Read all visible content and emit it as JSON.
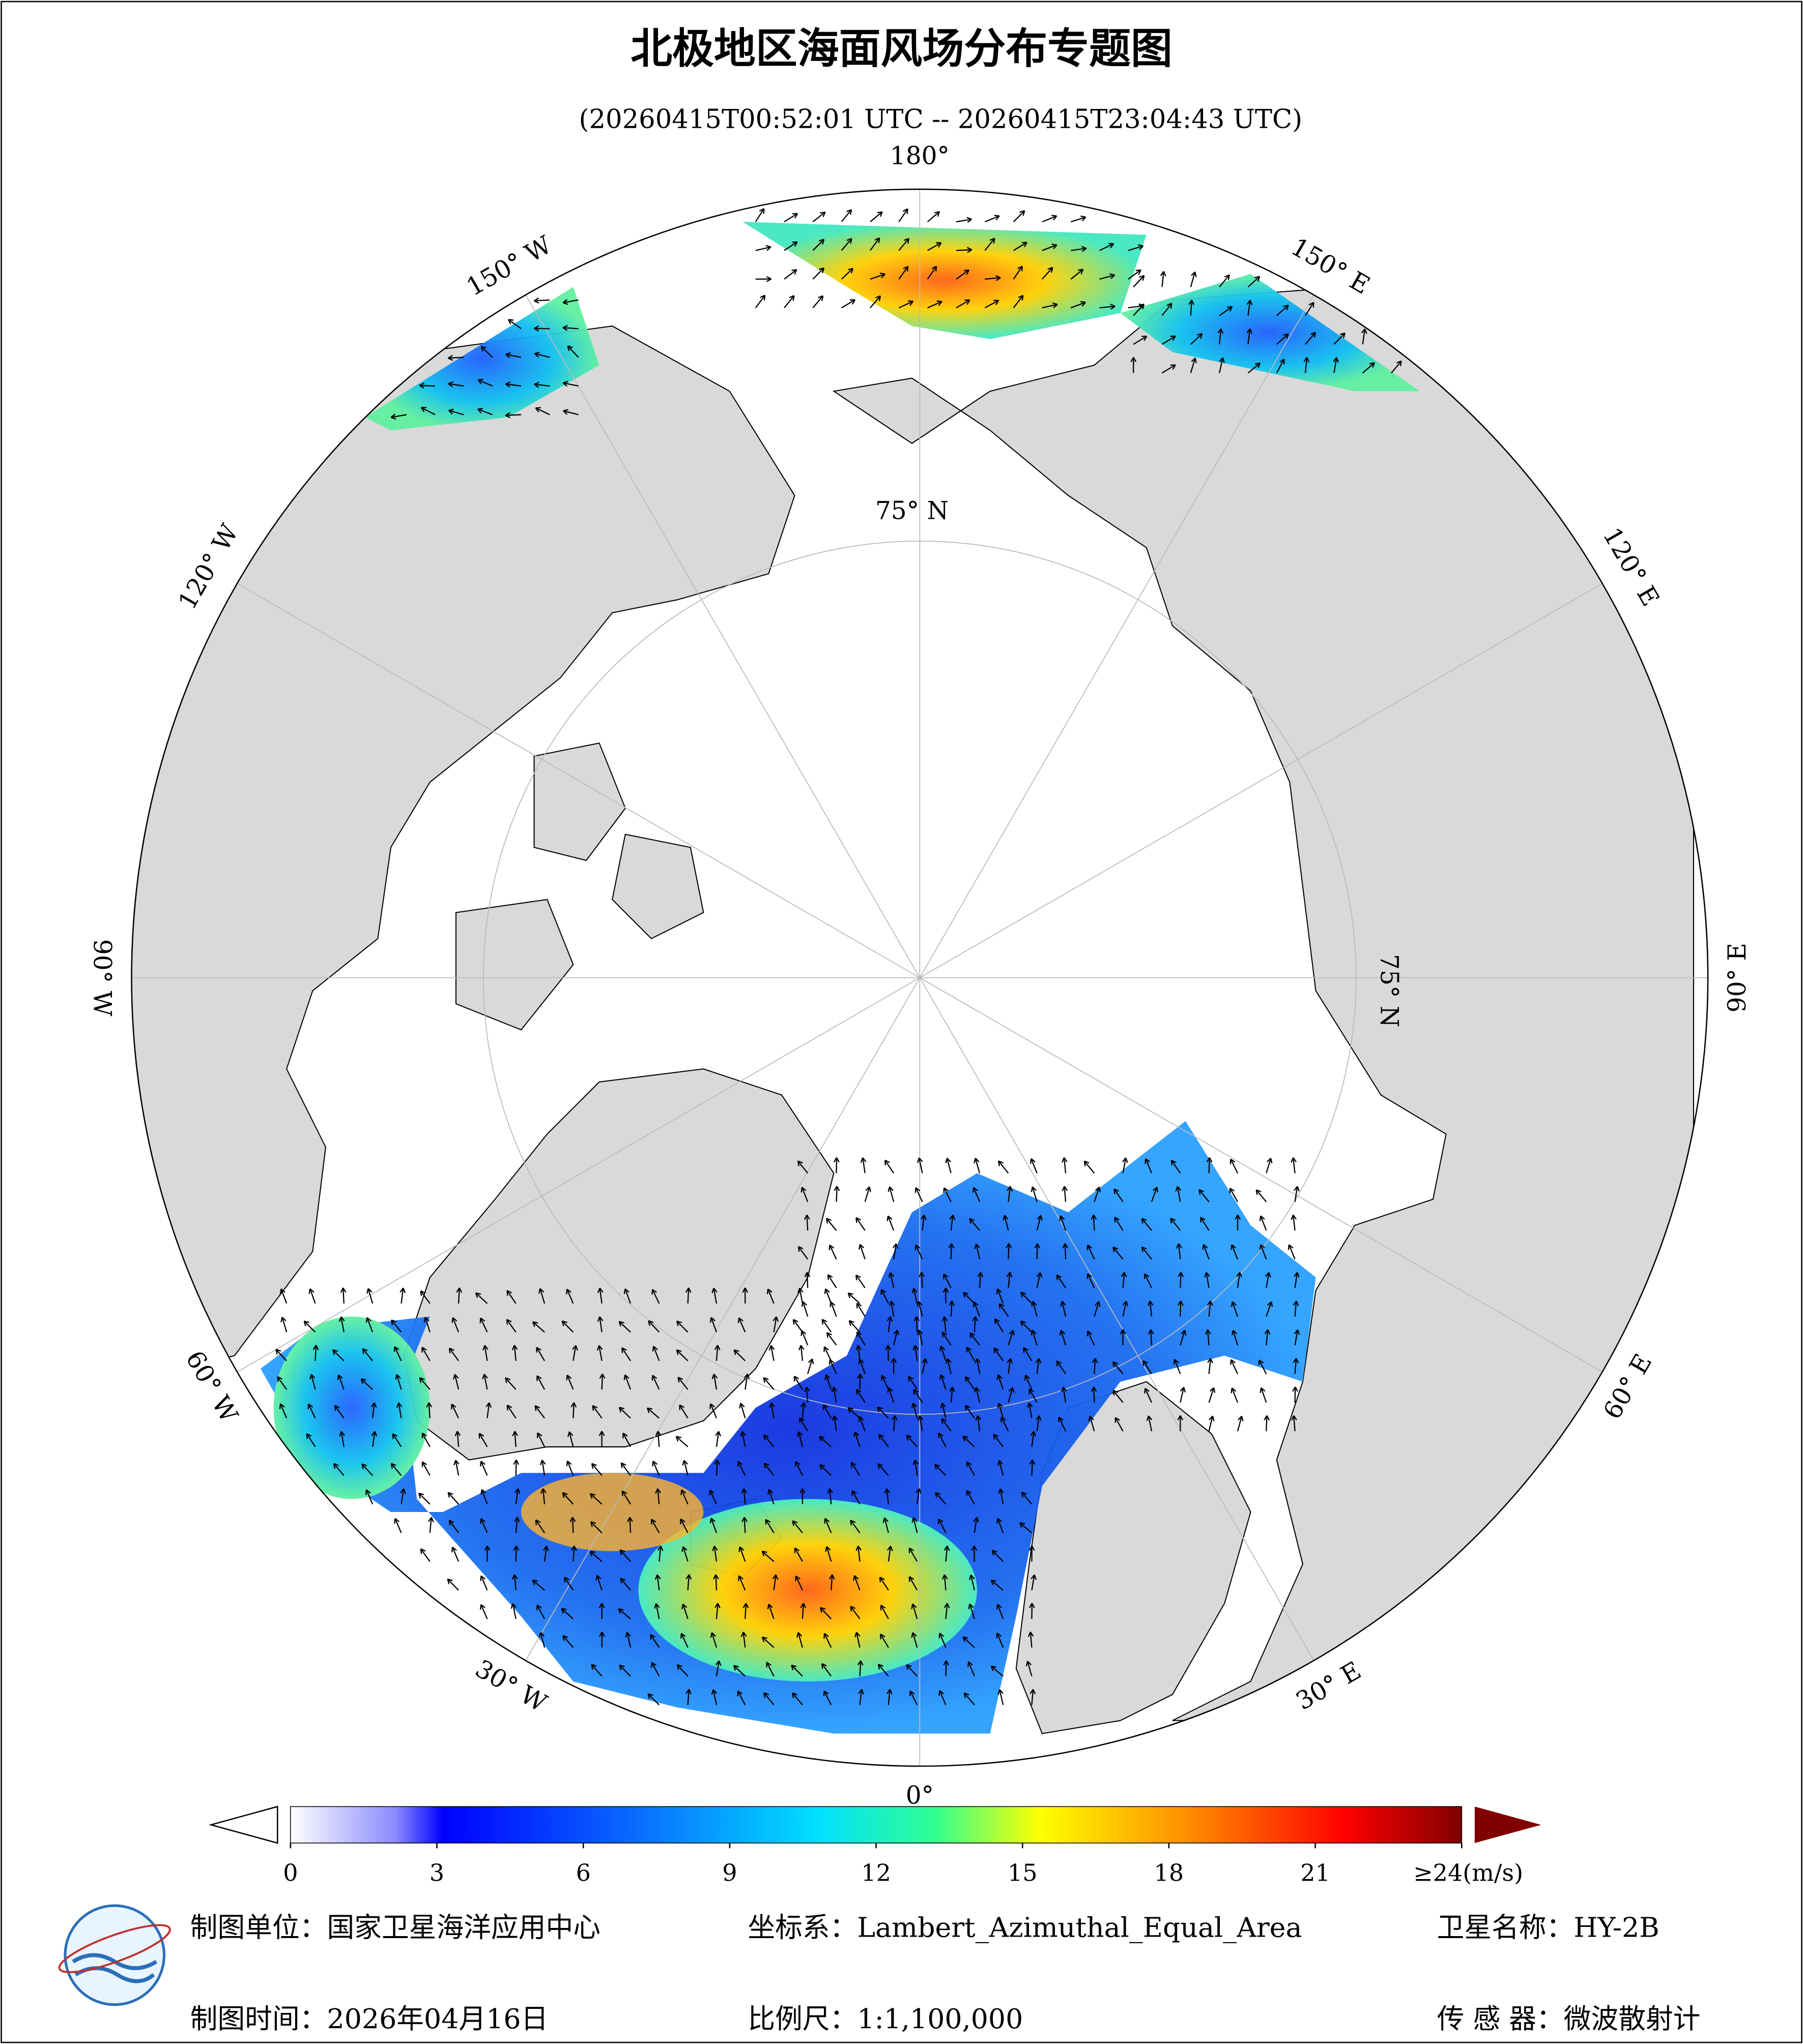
{
  "header": {
    "title": "北极地区海面风场分布专题图",
    "subtitle": "(20260415T00:52:01 UTC -- 20260415T23:04:43 UTC)"
  },
  "map": {
    "longitude_labels": [
      "0°",
      "30° E",
      "60° E",
      "90° E",
      "120° E",
      "150° E",
      "180°",
      "150° W",
      "120° W",
      "90° W",
      "60° W",
      "30° W"
    ],
    "latitude_label": "75° N"
  },
  "colorbar": {
    "lim": [
      0,
      24
    ],
    "ticks": [
      0,
      3,
      6,
      9,
      12,
      15,
      18,
      21,
      {
        "value": 24,
        "label": "≥24(m/s)"
      }
    ]
  },
  "footer": {
    "unit": "制图单位：国家卫星海洋应用中心",
    "crs": "坐标系：Lambert_Azimuthal_Equal_Area",
    "satellite": "卫星名称：HY-2B",
    "date": "制图时间：2026年04月16日",
    "scale": "比例尺：1:1,100,000",
    "sensor": "传 感 器：微波散射计"
  }
}
